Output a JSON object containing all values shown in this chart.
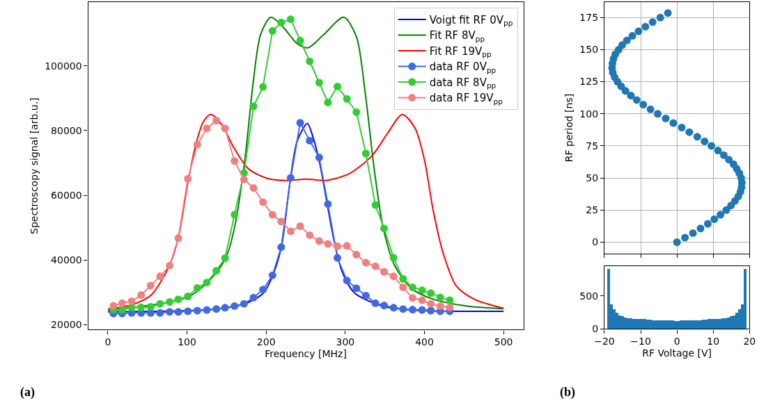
{
  "chart_data": [
    {
      "type": "line",
      "xlabel": "Frequency [MHz]",
      "ylabel": "Spectroscopy signal [arb.u.]",
      "xlim": [
        -25,
        525
      ],
      "ylim": [
        18500,
        119700
      ],
      "xticks": [
        0,
        100,
        200,
        300,
        400,
        500
      ],
      "yticks": [
        20000,
        40000,
        60000,
        80000,
        100000
      ],
      "grid": false,
      "legend": "top right",
      "annotations": [
        "(a)"
      ],
      "series": [
        {
          "name": "Voigt fit RF 0V$_{pp}$",
          "color": "#0000ff",
          "marker": "none",
          "x": [
            0,
            58,
            130,
            173,
            196,
            207,
            219,
            230,
            239,
            252,
            260,
            268,
            276,
            285,
            296,
            311,
            331,
            354,
            397,
            500
          ],
          "values": [
            24000,
            24200,
            24700,
            26500,
            29700,
            34500,
            43800,
            63900,
            76600,
            82200,
            77300,
            69500,
            58900,
            46900,
            36400,
            30000,
            27200,
            25400,
            24400,
            24200
          ]
        },
        {
          "name": "Fit RF 8V$_{pp}$",
          "color": "#008000",
          "marker": "none",
          "x": [
            0,
            101,
            133,
            150,
            161,
            173,
            184,
            193,
            206,
            222,
            239,
            253,
            273,
            298,
            314,
            325,
            337,
            348,
            362,
            383,
            411,
            454,
            500
          ],
          "values": [
            24500,
            28600,
            35000,
            41300,
            51200,
            70900,
            95700,
            109700,
            115000,
            111800,
            106900,
            105600,
            109700,
            115000,
            109000,
            92000,
            67200,
            49800,
            38500,
            31400,
            27900,
            25800,
            25000
          ]
        },
        {
          "name": "Fit RF 19V$_{pp}$",
          "color": "#ff0000",
          "marker": "none",
          "x": [
            0,
            29,
            55,
            78,
            89,
            101,
            112,
            121,
            130,
            144,
            158,
            178,
            201,
            224,
            252,
            276,
            305,
            334,
            354,
            372,
            388,
            400,
            411,
            423,
            440,
            463,
            500
          ],
          "values": [
            24900,
            26100,
            29300,
            38500,
            46900,
            63900,
            76600,
            82900,
            85000,
            81900,
            75200,
            68100,
            65300,
            64600,
            65000,
            64600,
            66700,
            72300,
            79400,
            85000,
            80800,
            70900,
            55400,
            42700,
            32100,
            27900,
            25100
          ]
        },
        {
          "name": "data RF 0V$_{pp}$",
          "color": "#4169e1",
          "marker": "circle",
          "x": [
            7,
            18,
            30,
            42,
            54,
            66,
            78,
            89,
            101,
            113,
            125,
            137,
            148,
            160,
            172,
            184,
            196,
            208,
            219,
            231,
            243,
            255,
            267,
            278,
            290,
            302,
            314,
            326,
            338,
            349,
            361,
            373,
            385,
            397,
            408,
            420,
            432
          ],
          "values": [
            23500,
            23500,
            23700,
            23700,
            23700,
            23700,
            24000,
            24000,
            24200,
            24400,
            24600,
            24900,
            25300,
            25800,
            26500,
            28400,
            30900,
            35300,
            44000,
            65400,
            82400,
            76900,
            71700,
            57300,
            40700,
            33700,
            31300,
            29000,
            26700,
            26000,
            25300,
            24900,
            24700,
            24600,
            24400,
            24200,
            24200
          ]
        },
        {
          "name": "data RF 8V$_{pp}$",
          "color": "#32cd32",
          "marker": "circle",
          "x": [
            7,
            18,
            30,
            42,
            54,
            66,
            78,
            89,
            101,
            113,
            125,
            137,
            148,
            160,
            172,
            184,
            196,
            208,
            219,
            231,
            243,
            255,
            267,
            278,
            290,
            302,
            314,
            326,
            338,
            349,
            361,
            373,
            385,
            397,
            408,
            420,
            432
          ],
          "values": [
            24700,
            24600,
            25400,
            25400,
            25600,
            26500,
            27100,
            27900,
            28800,
            31400,
            33100,
            36700,
            40600,
            54000,
            66900,
            87500,
            93500,
            110800,
            113400,
            114400,
            107800,
            101400,
            94800,
            88700,
            93600,
            89800,
            85700,
            72900,
            57000,
            49800,
            40700,
            34200,
            31600,
            30700,
            29800,
            28500,
            27600
          ]
        },
        {
          "name": "data RF 19V$_{pp}$",
          "color": "#f08080",
          "marker": "circle",
          "x": [
            7,
            18,
            30,
            42,
            54,
            66,
            78,
            89,
            101,
            113,
            125,
            137,
            148,
            160,
            172,
            184,
            196,
            208,
            219,
            231,
            243,
            255,
            267,
            278,
            290,
            302,
            314,
            326,
            338,
            349,
            361,
            373,
            385,
            397,
            408,
            420,
            432
          ],
          "values": [
            25900,
            26700,
            27300,
            29200,
            32100,
            35000,
            38300,
            46800,
            65100,
            75700,
            80700,
            83100,
            80700,
            70600,
            64900,
            62300,
            57900,
            54000,
            51900,
            48900,
            50500,
            47700,
            45900,
            45000,
            44300,
            44400,
            41700,
            39200,
            38100,
            36400,
            35000,
            31600,
            28300,
            27600,
            26500,
            25800,
            25400
          ]
        }
      ]
    },
    {
      "type": "scatter",
      "ylabel": "RF period [ns]",
      "xlim": [
        -20,
        20
      ],
      "ylim": [
        -8.9,
        187
      ],
      "xticks": [
        -20,
        -10,
        0,
        10,
        20
      ],
      "yticks": [
        0,
        25,
        50,
        75,
        100,
        125,
        150,
        175
      ],
      "grid": true,
      "tick_labels": "y",
      "marker": "circle",
      "color": "#1f77b4",
      "x": [
        0,
        2.2,
        4.4,
        6.5,
        8.5,
        10.3,
        12.0,
        13.6,
        14.9,
        16.0,
        16.9,
        17.5,
        17.8,
        17.9,
        17.7,
        17.2,
        16.5,
        15.6,
        14.3,
        12.9,
        11.3,
        9.5,
        7.6,
        5.6,
        3.4,
        1.3,
        -1.0,
        -3.1,
        -5.3,
        -7.3,
        -9.3,
        -11.1,
        -12.7,
        -14.2,
        -15.4,
        -16.4,
        -17.2,
        -17.7,
        -17.9,
        -17.8,
        -17.5,
        -17.0,
        -16.1,
        -15.1,
        -13.8,
        -12.3,
        -10.6,
        -8.7,
        -6.7,
        -4.6,
        -2.5
      ],
      "values": [
        0,
        3.6,
        7.1,
        10.7,
        14.3,
        17.9,
        21.4,
        25.0,
        28.6,
        32.1,
        35.7,
        39.3,
        42.8,
        46.4,
        50.0,
        53.6,
        57.1,
        60.7,
        64.3,
        67.8,
        71.4,
        75.0,
        78.5,
        82.1,
        85.7,
        89.3,
        92.8,
        96.4,
        100.0,
        103.5,
        107.1,
        110.7,
        114.2,
        117.8,
        121.4,
        125.0,
        128.5,
        132.1,
        135.7,
        139.2,
        142.8,
        146.4,
        149.9,
        153.5,
        157.1,
        160.7,
        164.2,
        167.8,
        171.4,
        174.9,
        178.5
      ]
    },
    {
      "type": "histogram",
      "xlabel": "RF Voltage [V]",
      "xlim": [
        -20,
        20
      ],
      "ylim": [
        0,
        952
      ],
      "xticks": [
        -20,
        -10,
        0,
        10,
        20
      ],
      "yticks": [
        0,
        500
      ],
      "grid": false,
      "color": "#1f77b4",
      "annotations": [
        "(b)"
      ],
      "bins": [
        -19.2,
        -18.43,
        -17.66,
        -16.9,
        -16.13,
        -15.36,
        -14.59,
        -13.82,
        -13.06,
        -12.29,
        -11.52,
        -10.75,
        -9.98,
        -9.22,
        -8.45,
        -7.68,
        -6.91,
        -6.14,
        -5.38,
        -4.61,
        -3.84,
        -3.07,
        -2.3,
        -1.54,
        -0.77,
        0,
        0.77,
        1.54,
        2.3,
        3.07,
        3.84,
        4.61,
        5.38,
        6.14,
        6.91,
        7.68,
        8.45,
        9.22,
        9.98,
        10.75,
        11.52,
        12.29,
        13.06,
        13.82,
        14.59,
        15.36,
        16.13,
        16.9,
        17.66,
        18.43,
        19.2
      ],
      "values": [
        910,
        380,
        300,
        250,
        210,
        200,
        180,
        170,
        170,
        160,
        150,
        150,
        150,
        150,
        140,
        140,
        130,
        130,
        130,
        130,
        130,
        130,
        130,
        130,
        120,
        120,
        130,
        130,
        130,
        130,
        130,
        130,
        130,
        130,
        140,
        140,
        150,
        150,
        150,
        150,
        160,
        170,
        170,
        180,
        200,
        210,
        250,
        300,
        380,
        910
      ]
    }
  ]
}
